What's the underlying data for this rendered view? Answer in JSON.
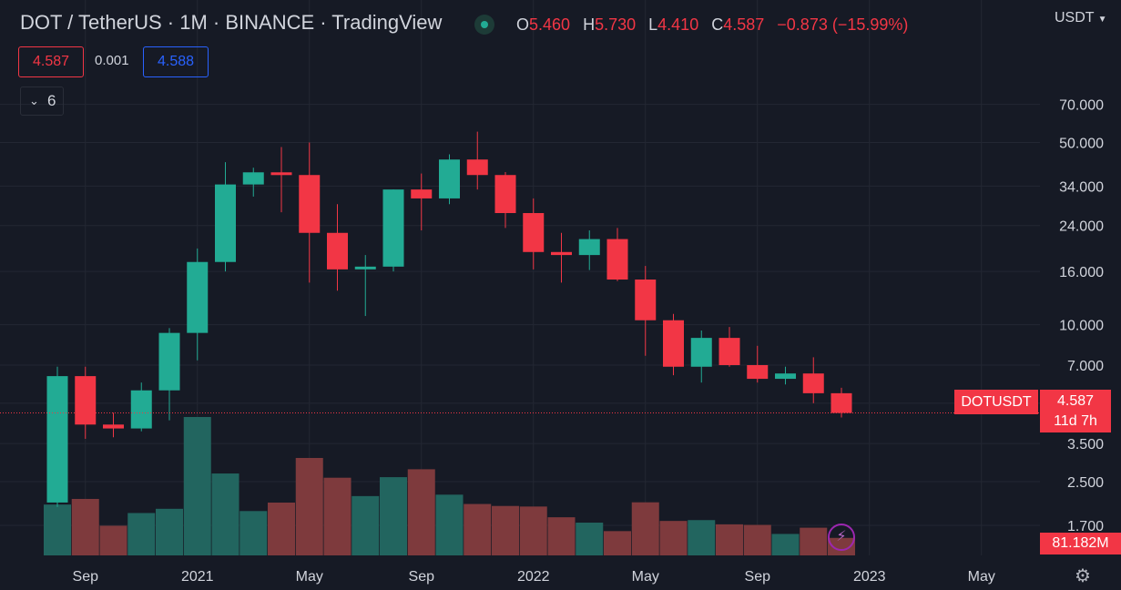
{
  "header": {
    "title": "DOT / TetherUS · 1M · BINANCE · TradingView",
    "ohlc": {
      "o_key": "O",
      "o": "5.460",
      "h_key": "H",
      "h": "5.730",
      "l_key": "L",
      "l": "4.410",
      "c_key": "C",
      "c": "4.587",
      "change": "−0.873 (−15.99%)"
    },
    "sell": "4.587",
    "spread": "0.001",
    "buy": "4.588",
    "indicators_count": "6",
    "currency": "USDT"
  },
  "labels": {
    "symbol": "DOTUSDT",
    "last_price": "4.587",
    "countdown": "11d 7h",
    "volume": "81.182M"
  },
  "colors": {
    "up": "#22ab94",
    "down": "#f23645",
    "up_vol": "#22655f",
    "down_vol": "#7e3a3d",
    "bg": "#161a25"
  },
  "icons": {
    "live": "live-dot-icon",
    "collapse": "chevron-down-icon",
    "alert": "lightning-icon",
    "settings": "gear-icon"
  },
  "chart_data": {
    "type": "candlestick",
    "scale": "log",
    "grid": true,
    "y_ticks": [
      "70.000",
      "50.000",
      "34.000",
      "24.000",
      "16.000",
      "10.000",
      "7.000",
      "5.000",
      "3.500",
      "2.500",
      "1.700"
    ],
    "y_tick_values": [
      70,
      50,
      34,
      24,
      16,
      10,
      7,
      5,
      3.5,
      2.5,
      1.7
    ],
    "x_ticks": [
      "Sep",
      "2021",
      "May",
      "Sep",
      "2022",
      "May",
      "Sep",
      "2023",
      "May"
    ],
    "x_tick_months": [
      "2020-09",
      "2021-01",
      "2021-05",
      "2021-09",
      "2022-01",
      "2022-05",
      "2022-09",
      "2023-01",
      "2023-05"
    ],
    "candles": [
      {
        "date": "2020-08",
        "o": 2.08,
        "h": 6.9,
        "l": 2.0,
        "c": 6.35,
        "v": 18
      },
      {
        "date": "2020-09",
        "o": 6.35,
        "h": 6.9,
        "l": 3.65,
        "c": 4.14,
        "v": 20
      },
      {
        "date": "2020-10",
        "o": 4.14,
        "h": 4.6,
        "l": 3.7,
        "c": 4.0,
        "v": 10.5
      },
      {
        "date": "2020-11",
        "o": 4.0,
        "h": 6.0,
        "l": 3.9,
        "c": 5.6,
        "v": 15
      },
      {
        "date": "2020-12",
        "o": 5.6,
        "h": 9.7,
        "l": 4.3,
        "c": 9.3,
        "v": 16.5
      },
      {
        "date": "2021-01",
        "o": 9.3,
        "h": 19.6,
        "l": 7.3,
        "c": 17.4,
        "v": 49
      },
      {
        "date": "2021-02",
        "o": 17.4,
        "h": 42.0,
        "l": 16.0,
        "c": 34.5,
        "v": 29
      },
      {
        "date": "2021-03",
        "o": 34.5,
        "h": 40.0,
        "l": 31.0,
        "c": 38.4,
        "v": 15.7
      },
      {
        "date": "2021-04",
        "o": 38.4,
        "h": 48.0,
        "l": 27.0,
        "c": 37.5,
        "v": 18.7
      },
      {
        "date": "2021-05",
        "o": 37.5,
        "h": 50.0,
        "l": 14.5,
        "c": 22.5,
        "v": 34.5
      },
      {
        "date": "2021-06",
        "o": 22.5,
        "h": 29.0,
        "l": 13.5,
        "c": 16.3,
        "v": 27.5
      },
      {
        "date": "2021-07",
        "o": 16.3,
        "h": 18.5,
        "l": 10.8,
        "c": 16.7,
        "v": 21
      },
      {
        "date": "2021-08",
        "o": 16.7,
        "h": 33.0,
        "l": 16.0,
        "c": 33.0,
        "v": 27.7
      },
      {
        "date": "2021-09",
        "o": 33.0,
        "h": 38.0,
        "l": 23.0,
        "c": 30.5,
        "v": 30.5
      },
      {
        "date": "2021-10",
        "o": 30.5,
        "h": 45.0,
        "l": 29.0,
        "c": 43.0,
        "v": 21.5
      },
      {
        "date": "2021-11",
        "o": 43.0,
        "h": 55.0,
        "l": 33.0,
        "c": 37.5,
        "v": 18.2
      },
      {
        "date": "2021-12",
        "o": 37.5,
        "h": 38.5,
        "l": 23.5,
        "c": 26.8,
        "v": 17.5
      },
      {
        "date": "2022-01",
        "o": 26.8,
        "h": 30.5,
        "l": 16.3,
        "c": 19.0,
        "v": 17.3
      },
      {
        "date": "2022-02",
        "o": 19.0,
        "h": 22.5,
        "l": 14.5,
        "c": 18.5,
        "v": 13.5
      },
      {
        "date": "2022-03",
        "o": 18.5,
        "h": 23.0,
        "l": 16.2,
        "c": 21.3,
        "v": 11.6
      },
      {
        "date": "2022-04",
        "o": 21.3,
        "h": 23.5,
        "l": 14.7,
        "c": 14.9,
        "v": 8.6
      },
      {
        "date": "2022-05",
        "o": 14.9,
        "h": 16.8,
        "l": 7.6,
        "c": 10.4,
        "v": 18.8
      },
      {
        "date": "2022-06",
        "o": 10.4,
        "h": 11.0,
        "l": 6.4,
        "c": 6.9,
        "v": 12.2
      },
      {
        "date": "2022-07",
        "o": 6.9,
        "h": 9.5,
        "l": 6.0,
        "c": 8.9,
        "v": 12.5
      },
      {
        "date": "2022-08",
        "o": 8.9,
        "h": 9.8,
        "l": 6.9,
        "c": 7.0,
        "v": 11
      },
      {
        "date": "2022-09",
        "o": 7.0,
        "h": 8.3,
        "l": 6.0,
        "c": 6.2,
        "v": 10.8
      },
      {
        "date": "2022-10",
        "o": 6.2,
        "h": 6.9,
        "l": 5.9,
        "c": 6.5,
        "v": 7.6
      },
      {
        "date": "2022-11",
        "o": 6.5,
        "h": 7.5,
        "l": 5.0,
        "c": 5.46,
        "v": 9.8
      },
      {
        "date": "2022-12",
        "o": 5.46,
        "h": 5.73,
        "l": 4.41,
        "c": 4.587,
        "v": 6.2
      }
    ]
  }
}
